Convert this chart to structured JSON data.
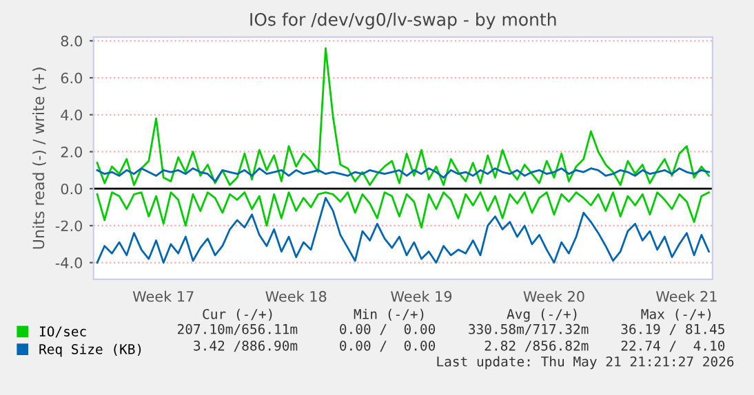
{
  "chart_data": {
    "type": "line",
    "title": "IOs for /dev/vg0/lv-swap - by month",
    "ylabel": "Units read (-) / write (+)",
    "categories": [
      null,
      null,
      null,
      null,
      null,
      null,
      null,
      null,
      null,
      "Week 17",
      null,
      null,
      null,
      null,
      null,
      null,
      null,
      null,
      null,
      null,
      null,
      null,
      null,
      null,
      null,
      null,
      null,
      "Week 18",
      null,
      null,
      null,
      null,
      null,
      null,
      null,
      null,
      null,
      null,
      null,
      null,
      null,
      null,
      null,
      null,
      "Week 19",
      null,
      null,
      null,
      null,
      null,
      null,
      null,
      null,
      null,
      null,
      null,
      null,
      null,
      null,
      null,
      null,
      null,
      "Week 20",
      null,
      null,
      null,
      null,
      null,
      null,
      null,
      null,
      null,
      null,
      null,
      null,
      null,
      null,
      null,
      null,
      null,
      "Week 21",
      null,
      null,
      null
    ],
    "series": [
      {
        "name": "IO/sec",
        "color": "#00cc00",
        "values": [
          1.4,
          0.3,
          1.2,
          0.8,
          1.6,
          0.2,
          1.1,
          1.5,
          3.8,
          0.6,
          0.4,
          1.7,
          0.9,
          2.0,
          0.7,
          1.3,
          0.3,
          1.0,
          0.2,
          0.6,
          1.9,
          0.5,
          2.1,
          1.0,
          1.8,
          0.4,
          2.3,
          1.2,
          1.9,
          1.5,
          0.9,
          7.6,
          3.9,
          1.3,
          1.1,
          0.4,
          0.9,
          0.2,
          0.8,
          1.2,
          1.5,
          0.3,
          1.9,
          0.7,
          2.1,
          0.5,
          1.2,
          0.2,
          1.6,
          0.9,
          0.4,
          1.4,
          0.3,
          1.8,
          0.6,
          2.1,
          1.0,
          0.5,
          1.3,
          0.8,
          0.3,
          1.5,
          0.6,
          1.9,
          0.4,
          1.2,
          1.6,
          3.1,
          2.0,
          1.3,
          0.9,
          0.2,
          1.5,
          0.8,
          1.3,
          0.3,
          1.0,
          1.6,
          0.7,
          1.9,
          2.3,
          0.6,
          1.2,
          0.7
        ]
      },
      {
        "color": "#00cc00",
        "values": [
          -0.3,
          -1.7,
          -0.2,
          -0.4,
          -1.1,
          -0.3,
          -0.2,
          -1.5,
          -0.4,
          -1.9,
          -0.2,
          -0.6,
          -2.0,
          -0.3,
          -1.2,
          -0.2,
          -0.5,
          -1.3,
          -0.3,
          -0.6,
          -0.2,
          -1.1,
          -0.4,
          -2.0,
          -0.3,
          -1.6,
          -0.2,
          -1.2,
          -0.5,
          -1.0,
          -0.3,
          -0.2,
          -0.3,
          -0.7,
          -0.2,
          -1.3,
          -0.3,
          -0.8,
          -1.6,
          -0.2,
          -0.4,
          -1.5,
          -0.3,
          -0.7,
          -2.1,
          -0.3,
          -1.1,
          -0.2,
          -0.6,
          -1.6,
          -0.3,
          -0.9,
          -0.2,
          -1.2,
          -0.4,
          -1.6,
          -0.3,
          -0.8,
          -0.2,
          -1.3,
          -0.5,
          -0.2,
          -1.4,
          -0.3,
          -0.7,
          -0.2,
          -0.5,
          -0.9,
          -0.3,
          -1.2,
          -0.2,
          -1.5,
          -0.4,
          -0.9,
          -0.3,
          -1.4,
          -0.2,
          -0.6,
          -1.1,
          -0.3,
          -0.7,
          -1.8,
          -0.4,
          -0.2
        ]
      },
      {
        "name": "Req Size (KB)",
        "color": "#0066b3",
        "values": [
          1.0,
          0.8,
          0.9,
          0.7,
          1.0,
          0.8,
          1.1,
          0.9,
          0.7,
          1.0,
          0.9,
          1.0,
          0.8,
          1.1,
          0.9,
          0.8,
          0.4,
          1.0,
          0.9,
          0.8,
          1.0,
          0.7,
          1.1,
          0.8,
          0.9,
          1.0,
          0.7,
          1.0,
          0.8,
          0.9,
          1.0,
          0.8,
          0.9,
          0.8,
          0.7,
          0.9,
          0.8,
          1.0,
          0.9,
          0.8,
          0.9,
          1.0,
          0.7,
          1.0,
          0.8,
          1.1,
          0.9,
          0.6,
          1.0,
          0.8,
          0.9,
          0.7,
          1.0,
          0.8,
          1.1,
          0.9,
          0.8,
          1.0,
          0.7,
          0.9,
          1.0,
          0.8,
          0.9,
          1.1,
          0.8,
          1.0,
          0.9,
          1.1,
          1.0,
          0.7,
          0.8,
          1.0,
          0.9,
          0.7,
          1.0,
          0.8,
          0.9,
          1.0,
          0.8,
          1.1,
          0.9,
          0.8,
          1.0,
          0.9
        ]
      },
      {
        "color": "#0066b3",
        "values": [
          -4.0,
          -3.1,
          -3.5,
          -2.9,
          -3.6,
          -2.4,
          -3.3,
          -3.8,
          -2.8,
          -4.0,
          -3.0,
          -3.5,
          -2.6,
          -3.9,
          -3.2,
          -2.7,
          -3.6,
          -3.1,
          -2.2,
          -1.7,
          -2.1,
          -1.4,
          -2.5,
          -3.1,
          -2.2,
          -3.4,
          -2.6,
          -3.7,
          -2.9,
          -3.3,
          -1.9,
          -0.5,
          -1.2,
          -2.5,
          -3.2,
          -3.9,
          -2.3,
          -2.8,
          -1.9,
          -2.7,
          -3.2,
          -2.6,
          -3.6,
          -2.9,
          -3.8,
          -3.4,
          -4.0,
          -3.1,
          -3.6,
          -3.3,
          -3.5,
          -2.8,
          -3.6,
          -2.0,
          -1.5,
          -2.2,
          -1.8,
          -2.6,
          -2.0,
          -3.0,
          -2.5,
          -3.3,
          -4.0,
          -2.9,
          -3.5,
          -2.6,
          -1.3,
          -1.8,
          -2.4,
          -3.1,
          -3.9,
          -3.4,
          -2.3,
          -1.9,
          -2.8,
          -2.3,
          -3.3,
          -2.6,
          -3.7,
          -3.0,
          -2.4,
          -3.6,
          -2.5,
          -3.4
        ]
      }
    ],
    "ylim": [
      -4.9,
      8.2
    ],
    "yticks": [
      {
        "value": -4,
        "label": "-4.0"
      },
      {
        "value": -2,
        "label": "-2.0"
      },
      {
        "value": 0,
        "label": "0.0"
      },
      {
        "value": 2,
        "label": "2.0"
      },
      {
        "value": 4,
        "label": "4.0"
      },
      {
        "value": 6,
        "label": "6.0"
      },
      {
        "value": 8,
        "label": "8.0"
      }
    ],
    "ref_lines": [
      {
        "axis": "y",
        "value": 0,
        "color": "#000000"
      }
    ],
    "grid": "y",
    "legend": "bottom",
    "marker": "none",
    "line_style": "solid",
    "annotations": [
      "Cur (-/+)",
      "Min (-/+)",
      "Avg (-/+)",
      "Max (-/+)",
      "207.10m/656.11m",
      "0.00 /  0.00",
      "330.58m/717.32m",
      "36.19 / 81.45",
      "3.42 /886.90m",
      "0.00 /  0.00",
      "2.82 /856.82m",
      "22.74 /  4.10",
      "Last update: Thu May 21 21:21:27 2026"
    ]
  }
}
